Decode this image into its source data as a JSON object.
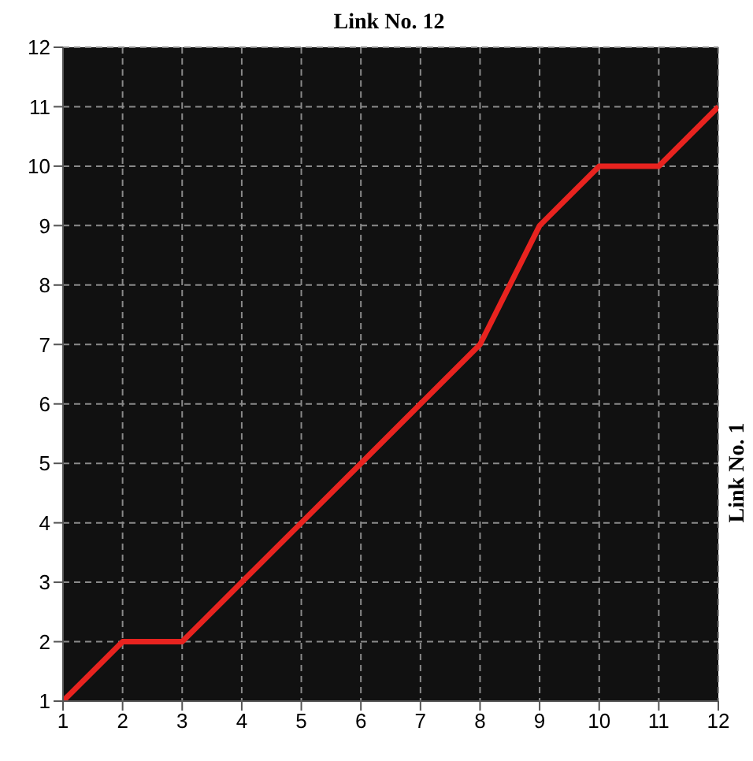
{
  "chart_data": {
    "type": "line",
    "title": "Link No. 12",
    "y2label": "Link No. 1",
    "x": [
      1,
      2,
      3,
      4,
      5,
      6,
      7,
      8,
      9,
      10,
      11,
      12
    ],
    "series": [
      {
        "color": "#e8231f",
        "values": [
          1,
          2,
          2,
          3,
          4,
          5,
          6,
          7,
          9,
          10,
          10,
          11
        ]
      }
    ],
    "xlim": [
      1,
      12
    ],
    "ylim": [
      1,
      12
    ],
    "xticks": [
      1,
      2,
      3,
      4,
      5,
      6,
      7,
      8,
      9,
      10,
      11,
      12
    ],
    "yticks": [
      1,
      2,
      3,
      4,
      5,
      6,
      7,
      8,
      9,
      10,
      11,
      12
    ],
    "grid": true,
    "marker": "none",
    "line_style": "solid"
  }
}
